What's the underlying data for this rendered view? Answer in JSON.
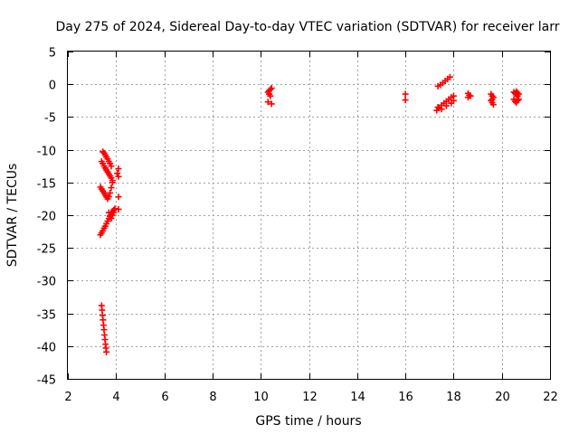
{
  "chart_data": {
    "type": "scatter",
    "title": "Day 275 of 2024, Sidereal Day-to-day VTEC variation (SDTVAR) for receiver larr",
    "xlabel": "GPS time / hours",
    "ylabel": "SDTVAR / TECUs",
    "xlim": [
      2,
      22
    ],
    "ylim": [
      -45,
      5
    ],
    "xticks": [
      2,
      4,
      6,
      8,
      10,
      12,
      14,
      16,
      18,
      20,
      22
    ],
    "yticks": [
      5,
      0,
      -5,
      -10,
      -15,
      -20,
      -25,
      -30,
      -35,
      -40,
      -45
    ],
    "grid": true,
    "marker": "plus",
    "color": "#ff0000",
    "series": [
      {
        "name": "SDTVAR",
        "x": [
          3.45,
          3.5,
          3.55,
          3.6,
          3.65,
          3.7,
          3.75,
          3.8,
          3.4,
          3.45,
          3.5,
          3.55,
          3.6,
          3.65,
          3.7,
          3.75,
          3.8,
          3.85,
          4.1,
          4.05,
          4.1,
          3.35,
          3.4,
          3.45,
          3.5,
          3.55,
          3.6,
          3.65,
          3.7,
          3.75,
          3.8,
          3.85,
          3.7,
          3.75,
          3.8,
          3.85,
          3.9,
          4.1,
          4.1,
          3.35,
          3.4,
          3.45,
          3.5,
          3.55,
          3.6,
          3.65,
          3.7,
          3.75,
          3.8,
          3.85,
          3.9,
          3.95,
          3.4,
          3.42,
          3.44,
          3.46,
          3.48,
          3.5,
          3.52,
          3.54,
          3.56,
          3.58,
          3.6,
          10.3,
          10.35,
          10.4,
          10.45,
          10.35,
          10.4,
          10.3,
          10.45,
          16.0,
          16.0,
          17.35,
          17.45,
          17.55,
          17.65,
          17.75,
          17.85,
          17.3,
          17.4,
          17.5,
          17.6,
          17.7,
          17.8,
          17.9,
          18.0,
          17.35,
          17.5,
          17.7,
          17.9,
          18.0,
          18.6,
          18.65,
          18.6,
          18.7,
          19.55,
          19.6,
          19.65,
          19.55,
          19.6,
          19.65,
          19.6,
          20.5,
          20.55,
          20.6,
          20.65,
          20.7,
          20.5,
          20.55,
          20.6,
          20.65,
          20.7,
          20.6,
          20.65
        ],
        "y": [
          -10.3,
          -10.5,
          -10.8,
          -11.1,
          -11.4,
          -11.8,
          -12.1,
          -12.5,
          -11.8,
          -12.1,
          -12.5,
          -12.8,
          -13.1,
          -13.4,
          -13.7,
          -14.0,
          -14.3,
          -14.7,
          -12.9,
          -13.6,
          -14.1,
          -15.7,
          -16.0,
          -16.3,
          -16.6,
          -16.9,
          -17.2,
          -17.5,
          -17.2,
          -16.6,
          -15.8,
          -15.0,
          -19.6,
          -20.1,
          -20.5,
          -20.0,
          -19.6,
          -17.2,
          -19.1,
          -23.0,
          -22.7,
          -22.4,
          -22.0,
          -21.7,
          -21.3,
          -20.9,
          -20.5,
          -20.2,
          -19.8,
          -19.5,
          -19.2,
          -19.0,
          -33.8,
          -34.5,
          -35.3,
          -36.0,
          -36.8,
          -37.5,
          -38.3,
          -39.0,
          -39.7,
          -40.3,
          -40.9,
          -1.2,
          -1.0,
          -0.8,
          -0.6,
          -1.5,
          -1.8,
          -2.7,
          -3.0,
          -1.5,
          -2.4,
          -0.3,
          -0.1,
          0.2,
          0.5,
          0.8,
          1.1,
          -4.0,
          -3.6,
          -3.2,
          -2.9,
          -2.6,
          -2.3,
          -2.0,
          -1.8,
          -3.5,
          -3.8,
          -3.3,
          -2.9,
          -2.5,
          -1.4,
          -1.7,
          -2.0,
          -1.8,
          -1.5,
          -1.8,
          -2.0,
          -2.5,
          -2.8,
          -3.1,
          -2.3,
          -1.2,
          -1.4,
          -1.6,
          -1.8,
          -1.5,
          -2.3,
          -2.6,
          -2.8,
          -2.5,
          -2.3,
          -1.1,
          -1.3
        ]
      }
    ]
  }
}
